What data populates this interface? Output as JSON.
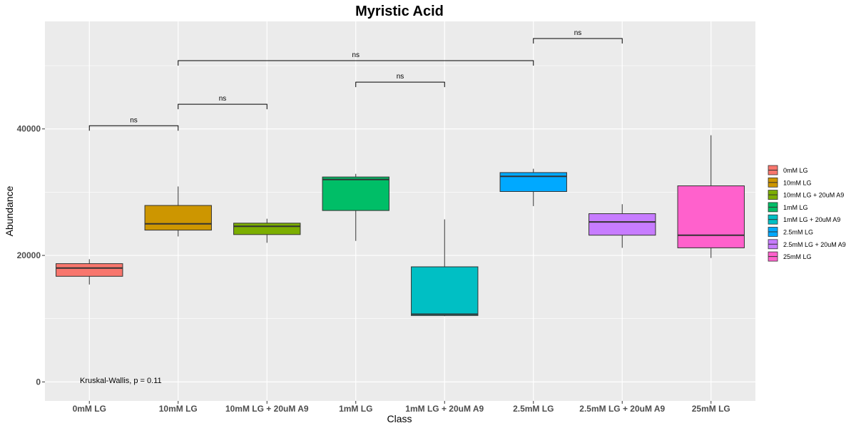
{
  "chart_data": {
    "type": "box",
    "title": "Myristic Acid",
    "xlabel": "Class",
    "ylabel": "Abundance",
    "ylim": [
      -3000,
      57000
    ],
    "yticks": [
      0,
      20000,
      40000
    ],
    "categories": [
      "0mM LG",
      "10mM LG",
      "10mM LG + 20uM A9",
      "1mM LG",
      "1mM LG + 20uM A9",
      "2.5mM LG",
      "2.5mM LG + 20uM A9",
      "25mM LG"
    ],
    "series": [
      {
        "category": "0mM LG",
        "min": 15400,
        "q1": 16700,
        "median": 18000,
        "q3": 18700,
        "max": 19400,
        "color": "#F8766D"
      },
      {
        "category": "10mM LG",
        "min": 23000,
        "q1": 24000,
        "median": 25000,
        "q3": 27900,
        "max": 30900,
        "color": "#CD9600"
      },
      {
        "category": "10mM LG + 20uM A9",
        "min": 22000,
        "q1": 23300,
        "median": 24600,
        "q3": 25100,
        "max": 25800,
        "color": "#7CAE00"
      },
      {
        "category": "1mM LG",
        "min": 22300,
        "q1": 27100,
        "median": 32000,
        "q3": 32400,
        "max": 32900,
        "color": "#00BE67"
      },
      {
        "category": "1mM LG + 20uM A9",
        "min": 10400,
        "q1": 10500,
        "median": 10700,
        "q3": 18200,
        "max": 25700,
        "color": "#00BFC4"
      },
      {
        "category": "2.5mM LG",
        "min": 27800,
        "q1": 30100,
        "median": 32500,
        "q3": 33100,
        "max": 33700,
        "color": "#00A9FF"
      },
      {
        "category": "2.5mM LG + 20uM A9",
        "min": 21200,
        "q1": 23200,
        "median": 25300,
        "q3": 26600,
        "max": 28100,
        "color": "#C77CFF"
      },
      {
        "category": "25mM LG",
        "min": 19600,
        "q1": 21200,
        "median": 23200,
        "q3": 31000,
        "max": 39000,
        "color": "#FF61CC"
      }
    ],
    "comparisons": [
      {
        "from": 0,
        "to": 1,
        "y": 40500,
        "label": "ns"
      },
      {
        "from": 1,
        "to": 2,
        "y": 43900,
        "label": "ns"
      },
      {
        "from": 3,
        "to": 4,
        "y": 47400,
        "label": "ns"
      },
      {
        "from": 1,
        "to": 5,
        "y": 50800,
        "label": "ns"
      },
      {
        "from": 5,
        "to": 6,
        "y": 54300,
        "label": "ns"
      }
    ],
    "annotation": "Kruskal-Wallis, p = 0.11",
    "legend": {
      "placement": "right",
      "entries": [
        "0mM LG",
        "10mM LG",
        "10mM LG + 20uM A9",
        "1mM LG",
        "1mM LG + 20uM A9",
        "2.5mM LG",
        "2.5mM LG + 20uM A9",
        "25mM LG"
      ]
    },
    "grid": true,
    "panel_background": "#EBEBEB",
    "grid_color": "#FFFFFF"
  }
}
